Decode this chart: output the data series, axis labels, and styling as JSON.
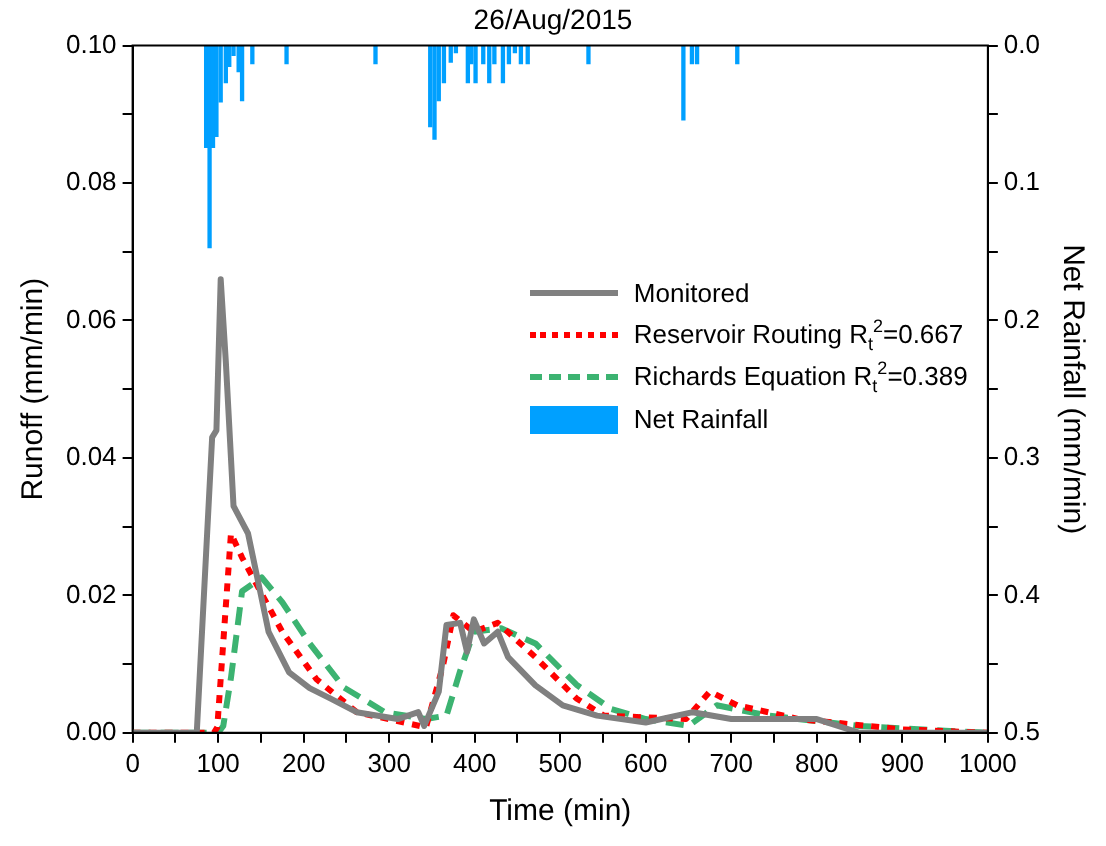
{
  "chart_data": {
    "type": "line",
    "title": "26/Aug/2015",
    "xlabel": "Time (min)",
    "ylabel": "Runoff (mm/min)",
    "y2label": "Net Rainfall (mm/min)",
    "xlim": [
      0,
      1000
    ],
    "xticks": [
      0,
      {
        "value": 50,
        "label": null
      },
      100,
      {
        "value": 150,
        "label": null
      },
      200,
      {
        "value": 250,
        "label": null
      },
      300,
      {
        "value": 350,
        "label": null
      },
      400,
      {
        "value": 450,
        "label": null
      },
      500,
      {
        "value": 550,
        "label": null
      },
      600,
      {
        "value": 650,
        "label": null
      },
      700,
      {
        "value": 750,
        "label": null
      },
      800,
      {
        "value": 850,
        "label": null
      },
      900,
      {
        "value": 950,
        "label": null
      },
      1000
    ],
    "ylim": [
      0,
      0.1
    ],
    "yticks": [
      {
        "value": 0,
        "label": "0.00"
      },
      {
        "value": 0.01,
        "label": null
      },
      {
        "value": 0.02,
        "label": "0.02"
      },
      {
        "value": 0.03,
        "label": null
      },
      {
        "value": 0.04,
        "label": "0.04"
      },
      {
        "value": 0.05,
        "label": null
      },
      {
        "value": 0.06,
        "label": "0.06"
      },
      {
        "value": 0.07,
        "label": null
      },
      {
        "value": 0.08,
        "label": "0.08"
      },
      {
        "value": 0.09,
        "label": null
      },
      {
        "value": 0.1,
        "label": "0.10"
      }
    ],
    "y2lim": [
      0.5,
      0
    ],
    "y2ticks": [
      {
        "value": 0,
        "label": "0.0"
      },
      {
        "value": 0.05,
        "label": null
      },
      {
        "value": 0.1,
        "label": "0.1"
      },
      {
        "value": 0.15,
        "label": null
      },
      {
        "value": 0.2,
        "label": "0.2"
      },
      {
        "value": 0.25,
        "label": null
      },
      {
        "value": 0.3,
        "label": "0.3"
      },
      {
        "value": 0.35,
        "label": null
      },
      {
        "value": 0.4,
        "label": "0.4"
      },
      {
        "value": 0.45,
        "label": null
      },
      {
        "value": 0.5,
        "label": "0.5"
      }
    ],
    "grid": false,
    "legend": "right",
    "marker": "none",
    "series": [
      {
        "name": "Monitored",
        "color": "#808080",
        "line_style": "solid",
        "x": [
          0,
          75,
          93,
          98,
          103,
          109,
          118,
          135,
          159,
          183,
          207,
          231,
          262,
          310,
          334,
          341,
          358,
          367,
          383,
          391,
          399,
          411,
          427,
          439,
          471,
          503,
          543,
          600,
          655,
          700,
          800,
          850,
          1000
        ],
        "values": [
          0,
          0,
          0.043,
          0.044,
          0.066,
          0.054,
          0.033,
          0.029,
          0.0147,
          0.0088,
          0.0065,
          0.005,
          0.003,
          0.002,
          0.003,
          0.001,
          0.006,
          0.0157,
          0.016,
          0.0118,
          0.0165,
          0.013,
          0.0147,
          0.011,
          0.0069,
          0.004,
          0.0025,
          0.0015,
          0.003,
          0.002,
          0.002,
          0,
          0
        ]
      },
      {
        "name": "Reservoir Routing R$_{t}$$^{2}$=0.667",
        "color": "#ff0000",
        "line_style": "dotted",
        "x": [
          0,
          95,
          99,
          115,
          128,
          175,
          215,
          262,
          343,
          363,
          375,
          399,
          427,
          471,
          519,
          551,
          647,
          675,
          707,
          779,
          900,
          1000
        ],
        "values": [
          0,
          0,
          0.0008,
          0.029,
          0.0255,
          0.0147,
          0.0078,
          0.003,
          0.0008,
          0.0098,
          0.0171,
          0.0147,
          0.016,
          0.011,
          0.005,
          0.0025,
          0.002,
          0.006,
          0.004,
          0.002,
          0.0005,
          0
        ]
      },
      {
        "name": "Richards Equation R$_{t}$$^{2}$=0.389",
        "color": "#3cb371",
        "line_style": "dashed",
        "x": [
          0,
          100,
          106,
          115,
          128,
          151,
          175,
          207,
          247,
          295,
          343,
          367,
          383,
          399,
          431,
          471,
          519,
          559,
          600,
          650,
          683,
          743,
          850,
          950,
          1000
        ],
        "values": [
          0,
          0,
          0.001,
          0.008,
          0.0206,
          0.0226,
          0.019,
          0.013,
          0.0066,
          0.003,
          0.002,
          0.0025,
          0.009,
          0.0147,
          0.0152,
          0.013,
          0.007,
          0.0035,
          0.002,
          0.001,
          0.004,
          0.0025,
          0.001,
          0.0003,
          0
        ]
      },
      {
        "name": "Net Rainfall",
        "type": "bar",
        "axis": "y2",
        "color": "#00a0ff",
        "x": [
          86,
          90,
          94,
          98,
          103,
          109,
          113,
          118,
          124,
          128,
          140,
          180,
          284,
          348,
          353,
          358,
          364,
          372,
          378,
          392,
          396,
          401,
          410,
          417,
          423,
          433,
          440,
          447,
          454,
          462,
          533,
          644,
          654,
          660,
          707
        ],
        "values": [
          0.074,
          0.147,
          0.074,
          0.066,
          0.041,
          0.027,
          0.015,
          0.007,
          0.019,
          0.04,
          0.013,
          0.013,
          0.013,
          0.059,
          0.068,
          0.04,
          0.027,
          0.012,
          0.005,
          0.027,
          0.013,
          0.027,
          0.013,
          0.027,
          0.013,
          0.027,
          0.013,
          0.005,
          0.013,
          0.013,
          0.013,
          0.054,
          0.013,
          0.013,
          0.013
        ]
      }
    ]
  }
}
